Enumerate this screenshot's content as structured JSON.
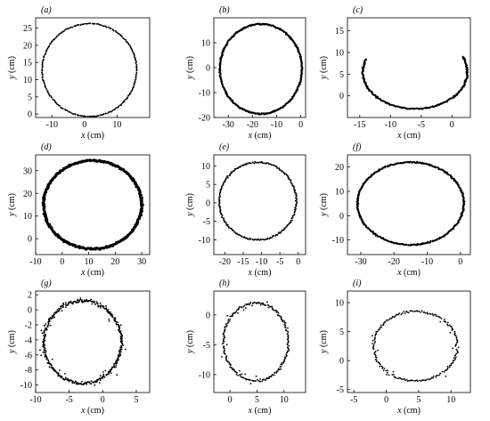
{
  "chart_data": [
    {
      "type": "scatter",
      "panel_label": "(a)",
      "xlabel": "x (cm)",
      "ylabel": "y (cm)",
      "xlim": [
        -15,
        20
      ],
      "ylim": [
        -1,
        28
      ],
      "xticks": [
        -10,
        0,
        10
      ],
      "yticks": [
        0,
        5,
        10,
        15,
        20,
        25
      ],
      "shape": "circle",
      "center": [
        1.5,
        12.8
      ],
      "radius": [
        14.5,
        13.5
      ],
      "arc": [
        0,
        360
      ],
      "style": "dense",
      "point_count": 260
    },
    {
      "type": "scatter",
      "panel_label": "(b)",
      "xlabel": "x (cm)",
      "ylabel": "y (cm)",
      "xlim": [
        -36,
        2
      ],
      "ylim": [
        -20,
        20
      ],
      "xticks": [
        -30,
        -20,
        -10,
        0
      ],
      "yticks": [
        -20,
        -10,
        0,
        10
      ],
      "shape": "circle",
      "center": [
        -16.5,
        -0.5
      ],
      "radius": [
        17,
        18
      ],
      "arc": [
        0,
        360
      ],
      "style": "thick",
      "point_count": 380
    },
    {
      "type": "scatter",
      "panel_label": "(c)",
      "xlabel": "x (cm)",
      "ylabel": "y (cm)",
      "xlim": [
        -17,
        3
      ],
      "ylim": [
        -5,
        18
      ],
      "xticks": [
        -15,
        -10,
        -5,
        0
      ],
      "yticks": [
        0,
        5,
        10,
        15
      ],
      "shape": "arc",
      "center": [
        -6,
        5.5
      ],
      "radius": [
        8.5,
        8.5
      ],
      "arc": [
        160,
        385
      ],
      "style": "thick",
      "point_count": 200
    },
    {
      "type": "scatter",
      "panel_label": "(d)",
      "xlabel": "x (cm)",
      "ylabel": "y (cm)",
      "xlim": [
        -10,
        33
      ],
      "ylim": [
        -7,
        37
      ],
      "xticks": [
        -10,
        0,
        10,
        20,
        30
      ],
      "yticks": [
        0,
        10,
        20,
        30
      ],
      "shape": "circle",
      "center": [
        11.5,
        15
      ],
      "radius": [
        18.5,
        19.5
      ],
      "arc": [
        0,
        360
      ],
      "style": "very-thick",
      "point_count": 500
    },
    {
      "type": "scatter",
      "panel_label": "(e)",
      "xlabel": "x (cm)",
      "ylabel": "y (cm)",
      "xlim": [
        -23,
        2
      ],
      "ylim": [
        -14,
        13
      ],
      "xticks": [
        -20,
        -15,
        -10,
        -5,
        0
      ],
      "yticks": [
        -10,
        -5,
        0,
        5,
        10
      ],
      "shape": "circle",
      "center": [
        -11,
        0.5
      ],
      "radius": [
        10.5,
        10.5
      ],
      "arc": [
        0,
        360
      ],
      "style": "sparse",
      "point_count": 260
    },
    {
      "type": "scatter",
      "panel_label": "(f)",
      "xlabel": "x (cm)",
      "ylabel": "y (cm)",
      "xlim": [
        -34,
        3
      ],
      "ylim": [
        -16,
        25
      ],
      "xticks": [
        -30,
        -20,
        -10,
        0
      ],
      "yticks": [
        -10,
        0,
        10,
        20
      ],
      "shape": "circle",
      "center": [
        -15,
        5
      ],
      "radius": [
        16,
        17
      ],
      "arc": [
        0,
        360
      ],
      "style": "thick",
      "point_count": 360
    },
    {
      "type": "scatter",
      "panel_label": "(g)",
      "xlabel": "x (cm)",
      "ylabel": "y (cm)",
      "xlim": [
        -10,
        7
      ],
      "ylim": [
        -11,
        2.5
      ],
      "xticks": [
        -10,
        -5,
        0,
        5
      ],
      "yticks": [
        -10,
        -8,
        -6,
        -4,
        -2,
        0,
        2
      ],
      "shape": "circle",
      "center": [
        -3,
        -4.3
      ],
      "radius": [
        5.8,
        5.5
      ],
      "arc": [
        0,
        360
      ],
      "style": "noisy",
      "point_count": 420
    },
    {
      "type": "scatter",
      "panel_label": "(h)",
      "xlabel": "x (cm)",
      "ylabel": "y (cm)",
      "xlim": [
        -3,
        14
      ],
      "ylim": [
        -13,
        4
      ],
      "xticks": [
        0,
        5,
        10
      ],
      "yticks": [
        -10,
        -5,
        0
      ],
      "shape": "circle",
      "center": [
        4.8,
        -4.5
      ],
      "radius": [
        6,
        6.5
      ],
      "arc": [
        0,
        360
      ],
      "style": "scattered",
      "point_count": 230
    },
    {
      "type": "scatter",
      "panel_label": "(i)",
      "xlabel": "x (cm)",
      "ylabel": "y (cm)",
      "xlim": [
        -6,
        13
      ],
      "ylim": [
        -5.5,
        12
      ],
      "xticks": [
        -5,
        0,
        5,
        10
      ],
      "yticks": [
        -5,
        0,
        5,
        10
      ],
      "shape": "circle",
      "center": [
        4.5,
        2.5
      ],
      "radius": [
        6.5,
        6
      ],
      "arc": [
        0,
        360
      ],
      "style": "scattered",
      "point_count": 200
    }
  ]
}
